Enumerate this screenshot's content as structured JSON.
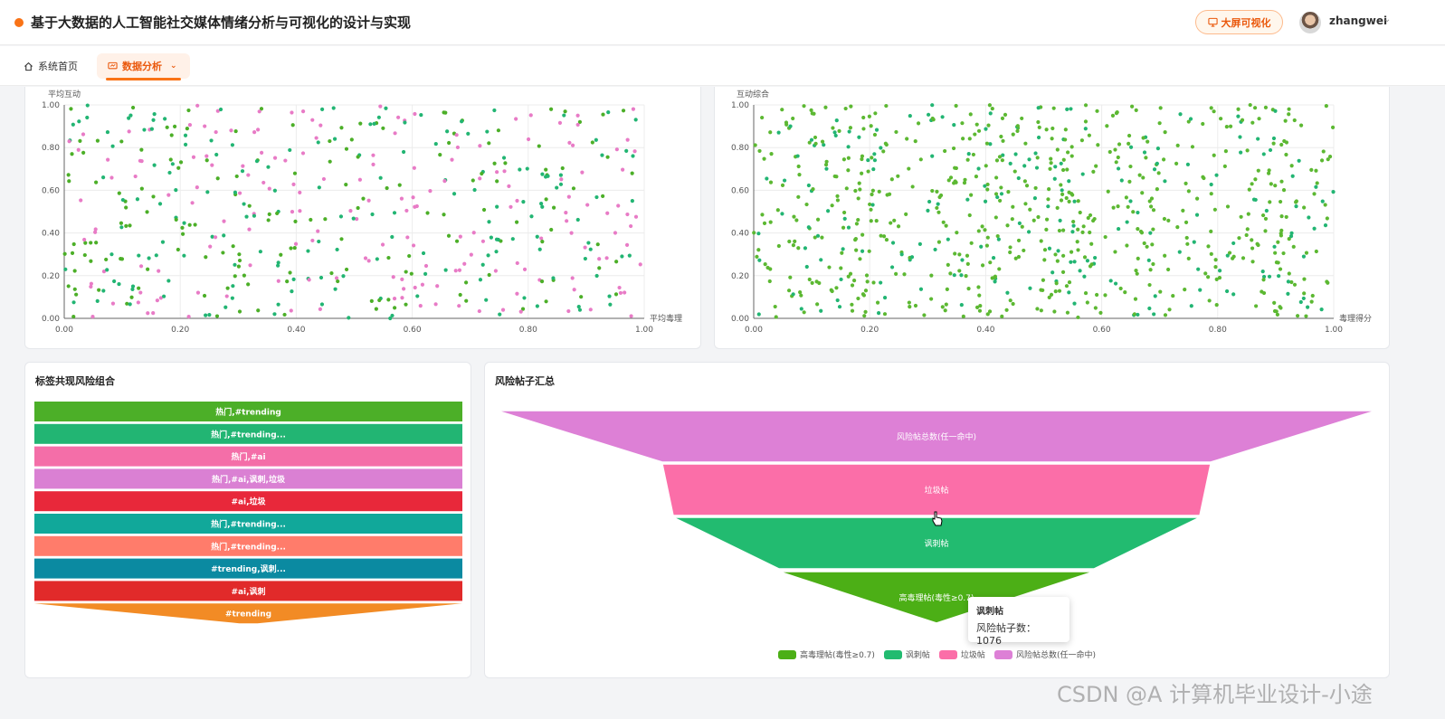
{
  "header": {
    "title": "基于大数据的人工智能社交媒体情绪分析与可视化的设计与实现",
    "bigscreen_label": "大屏可视化",
    "username": "zhangwei"
  },
  "tabs": {
    "home_label": "系统首页",
    "analysis_label": "数据分析"
  },
  "colors": {
    "accent": "#f97316",
    "series_green": "#4caf28",
    "series_teal": "#22b573",
    "series_pink": "#e87bc6",
    "all_points": "#5cb832"
  },
  "scatter_left": {
    "ylabel": "平均互动",
    "xlabel": "平均毒理",
    "x_ticks": [
      "0.00",
      "0.20",
      "0.40",
      "0.60",
      "0.80",
      "1.00"
    ],
    "y_ticks": [
      "0.00",
      "0.20",
      "0.40",
      "0.60",
      "0.80",
      "1.00"
    ]
  },
  "scatter_right": {
    "ylabel": "互动综合",
    "xlabel": "毒理得分",
    "x_ticks": [
      "0.00",
      "0.20",
      "0.40",
      "0.60",
      "0.80",
      "1.00"
    ],
    "y_ticks": [
      "0.00",
      "0.20",
      "0.40",
      "0.60",
      "0.80",
      "1.00"
    ]
  },
  "tag_panel": {
    "title": "标签共现风险组合",
    "items": [
      {
        "label": "热门,#trending",
        "color": "#4caf28"
      },
      {
        "label": "热门,#trending...",
        "color": "#22b573"
      },
      {
        "label": "热门,#ai",
        "color": "#f46ea8"
      },
      {
        "label": "热门,#ai,讽刺,垃圾",
        "color": "#da80d3"
      },
      {
        "label": "#ai,垃圾",
        "color": "#e8283a"
      },
      {
        "label": "热门,#trending...",
        "color": "#11a89a"
      },
      {
        "label": "热门,#trending...",
        "color": "#ff7c6b"
      },
      {
        "label": "#trending,讽刺...",
        "color": "#0b8aa1"
      },
      {
        "label": "#ai,讽刺",
        "color": "#e12a2a"
      },
      {
        "label": "#trending",
        "color": "#f28b25"
      }
    ]
  },
  "risk_panel": {
    "title": "风险帖子汇总",
    "stages": [
      {
        "label": "风险帖总数(任一命中)",
        "color": "#dd80d6"
      },
      {
        "label": "垃圾帖",
        "color": "#fb6ea8"
      },
      {
        "label": "讽刺帖",
        "color": "#22bb70"
      },
      {
        "label": "高毒理帖(毒性≥0.7)",
        "color": "#4caf16"
      }
    ],
    "legend": [
      {
        "label": "高毒理帖(毒性≥0.7)",
        "color": "#4caf16"
      },
      {
        "label": "讽刺帖",
        "color": "#22bb70"
      },
      {
        "label": "垃圾帖",
        "color": "#fb6ea8"
      },
      {
        "label": "风险帖总数(任一命中)",
        "color": "#dd80d6"
      }
    ],
    "tooltip": {
      "title": "讽刺帖",
      "line": "风险帖子数： 1076"
    }
  },
  "watermark": "CSDN @A 计算机毕业设计-小途"
}
